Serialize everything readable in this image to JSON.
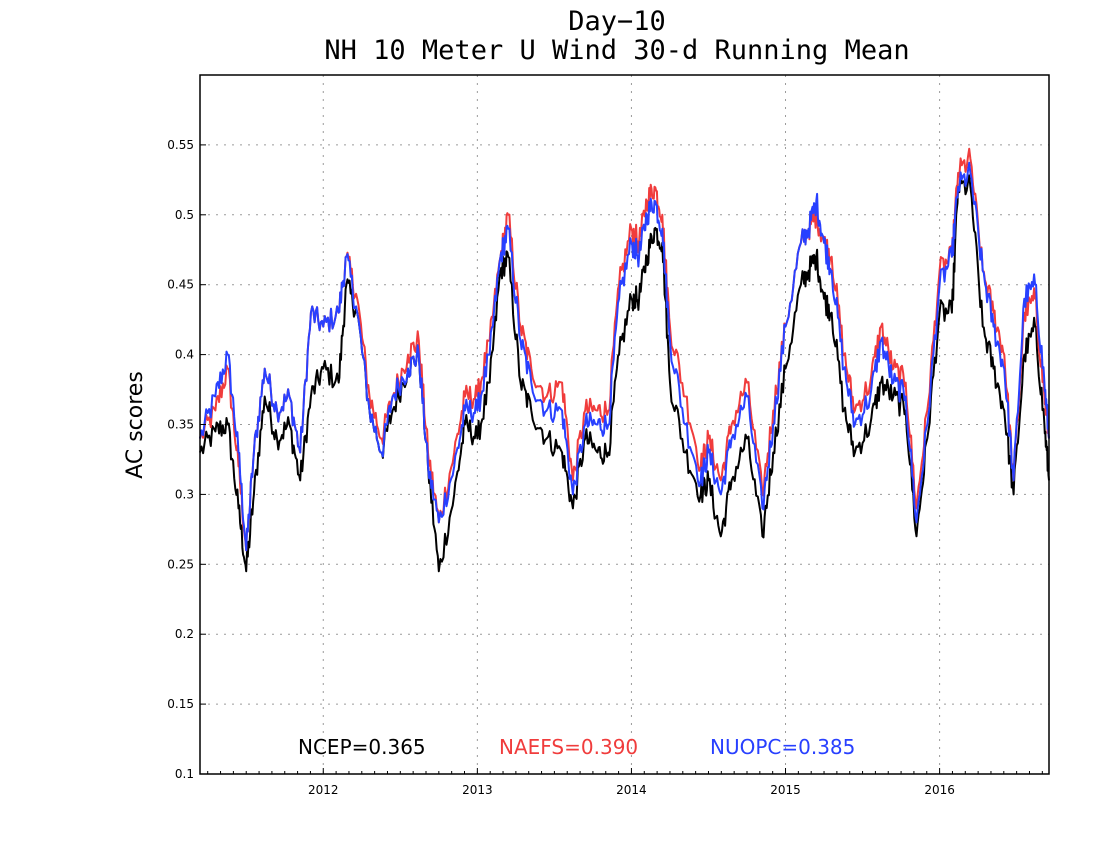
{
  "chart_data": {
    "type": "line",
    "title": "Day−10",
    "subtitle": "NH 10 Meter U Wind 30-d Running Mean",
    "xlabel": "",
    "ylabel": "AC scores",
    "xlim": [
      2011.2,
      2016.71
    ],
    "ylim": [
      0.1,
      0.6
    ],
    "x_ticks": [
      "2012",
      "2013",
      "2014",
      "2015",
      "2016"
    ],
    "y_ticks": [
      "0.1",
      "0.15",
      "0.2",
      "0.25",
      "0.3",
      "0.35",
      "0.4",
      "0.45",
      "0.5",
      "0.55"
    ],
    "grid": true,
    "legend": "bottom",
    "colors": {
      "NCEP": "#000000",
      "NAEFS": "#f03c3c",
      "NUOPC": "#2840ff"
    },
    "annotations": [
      {
        "text": "NCEP=0.365",
        "color": "#000000"
      },
      {
        "text": "NAEFS=0.390",
        "color": "#f03c3c"
      },
      {
        "text": "NUOPC=0.385",
        "color": "#2840ff"
      }
    ],
    "series": [
      {
        "name": "NCEP",
        "color": "#000000",
        "x": [
          2011.2,
          2011.3,
          2011.38,
          2011.45,
          2011.5,
          2011.55,
          2011.62,
          2011.7,
          2011.78,
          2011.85,
          2011.92,
          2012.0,
          2012.1,
          2012.15,
          2012.22,
          2012.3,
          2012.38,
          2012.45,
          2012.55,
          2012.62,
          2012.68,
          2012.75,
          2012.85,
          2012.92,
          2013.0,
          2013.08,
          2013.15,
          2013.2,
          2013.28,
          2013.35,
          2013.45,
          2013.55,
          2013.62,
          2013.7,
          2013.78,
          2013.85,
          2013.92,
          2014.0,
          2014.05,
          2014.1,
          2014.15,
          2014.2,
          2014.25,
          2014.35,
          2014.45,
          2014.5,
          2014.58,
          2014.65,
          2014.75,
          2014.85,
          2014.92,
          2015.0,
          2015.1,
          2015.15,
          2015.2,
          2015.25,
          2015.3,
          2015.38,
          2015.45,
          2015.55,
          2015.62,
          2015.7,
          2015.78,
          2015.85,
          2015.92,
          2016.0,
          2016.08,
          2016.12,
          2016.2,
          2016.28,
          2016.35,
          2016.42,
          2016.48,
          2016.55,
          2016.62,
          2016.68,
          2016.71
        ],
        "y": [
          0.33,
          0.345,
          0.35,
          0.29,
          0.245,
          0.3,
          0.37,
          0.34,
          0.35,
          0.31,
          0.37,
          0.39,
          0.38,
          0.45,
          0.43,
          0.36,
          0.33,
          0.36,
          0.39,
          0.4,
          0.32,
          0.245,
          0.3,
          0.35,
          0.34,
          0.38,
          0.46,
          0.47,
          0.38,
          0.36,
          0.34,
          0.33,
          0.29,
          0.34,
          0.33,
          0.33,
          0.4,
          0.44,
          0.44,
          0.47,
          0.49,
          0.48,
          0.38,
          0.33,
          0.3,
          0.31,
          0.27,
          0.31,
          0.34,
          0.27,
          0.33,
          0.39,
          0.45,
          0.46,
          0.47,
          0.44,
          0.43,
          0.36,
          0.33,
          0.35,
          0.38,
          0.37,
          0.36,
          0.27,
          0.34,
          0.43,
          0.43,
          0.52,
          0.52,
          0.42,
          0.39,
          0.36,
          0.3,
          0.4,
          0.42,
          0.35,
          0.31
        ]
      },
      {
        "name": "NAEFS",
        "color": "#f03c3c",
        "x": [
          2011.2,
          2011.3,
          2011.38,
          2011.45,
          2011.5,
          2011.55,
          2011.62,
          2011.7,
          2011.78,
          2011.85,
          2011.92,
          2012.0,
          2012.1,
          2012.15,
          2012.22,
          2012.3,
          2012.38,
          2012.45,
          2012.55,
          2012.62,
          2012.68,
          2012.75,
          2012.85,
          2012.92,
          2013.0,
          2013.08,
          2013.15,
          2013.2,
          2013.28,
          2013.35,
          2013.45,
          2013.55,
          2013.62,
          2013.7,
          2013.78,
          2013.85,
          2013.92,
          2014.0,
          2014.05,
          2014.1,
          2014.15,
          2014.2,
          2014.25,
          2014.35,
          2014.45,
          2014.5,
          2014.58,
          2014.65,
          2014.75,
          2014.85,
          2014.92,
          2015.0,
          2015.1,
          2015.15,
          2015.2,
          2015.25,
          2015.3,
          2015.38,
          2015.45,
          2015.55,
          2015.62,
          2015.7,
          2015.78,
          2015.85,
          2015.92,
          2016.0,
          2016.08,
          2016.12,
          2016.2,
          2016.28,
          2016.35,
          2016.42,
          2016.48,
          2016.55,
          2016.62,
          2016.68,
          2016.71
        ],
        "y": [
          0.34,
          0.36,
          0.39,
          0.32,
          0.26,
          0.33,
          0.39,
          0.36,
          0.37,
          0.33,
          0.43,
          0.42,
          0.43,
          0.47,
          0.44,
          0.37,
          0.34,
          0.37,
          0.4,
          0.41,
          0.33,
          0.28,
          0.33,
          0.37,
          0.37,
          0.41,
          0.47,
          0.5,
          0.42,
          0.39,
          0.37,
          0.38,
          0.31,
          0.36,
          0.36,
          0.36,
          0.45,
          0.49,
          0.48,
          0.51,
          0.52,
          0.5,
          0.42,
          0.37,
          0.32,
          0.34,
          0.31,
          0.35,
          0.38,
          0.3,
          0.36,
          0.42,
          0.48,
          0.49,
          0.5,
          0.48,
          0.47,
          0.4,
          0.36,
          0.38,
          0.42,
          0.39,
          0.38,
          0.29,
          0.36,
          0.46,
          0.47,
          0.53,
          0.54,
          0.46,
          0.43,
          0.4,
          0.31,
          0.43,
          0.44,
          0.37,
          0.34
        ]
      },
      {
        "name": "NUOPC",
        "color": "#2840ff",
        "x": [
          2011.2,
          2011.3,
          2011.38,
          2011.45,
          2011.5,
          2011.55,
          2011.62,
          2011.7,
          2011.78,
          2011.85,
          2011.92,
          2012.0,
          2012.1,
          2012.15,
          2012.22,
          2012.3,
          2012.38,
          2012.45,
          2012.55,
          2012.62,
          2012.68,
          2012.75,
          2012.85,
          2012.92,
          2013.0,
          2013.08,
          2013.15,
          2013.2,
          2013.28,
          2013.35,
          2013.45,
          2013.55,
          2013.62,
          2013.7,
          2013.78,
          2013.85,
          2013.92,
          2014.0,
          2014.05,
          2014.1,
          2014.15,
          2014.2,
          2014.25,
          2014.35,
          2014.45,
          2014.5,
          2014.58,
          2014.65,
          2014.75,
          2014.85,
          2014.92,
          2015.0,
          2015.1,
          2015.15,
          2015.2,
          2015.25,
          2015.3,
          2015.38,
          2015.45,
          2015.55,
          2015.62,
          2015.7,
          2015.78,
          2015.85,
          2015.92,
          2016.0,
          2016.08,
          2016.12,
          2016.2,
          2016.28,
          2016.35,
          2016.42,
          2016.48,
          2016.55,
          2016.62,
          2016.68,
          2016.71
        ],
        "y": [
          0.34,
          0.37,
          0.4,
          0.33,
          0.26,
          0.33,
          0.39,
          0.36,
          0.37,
          0.33,
          0.43,
          0.42,
          0.43,
          0.47,
          0.43,
          0.36,
          0.33,
          0.37,
          0.39,
          0.4,
          0.32,
          0.28,
          0.32,
          0.36,
          0.36,
          0.4,
          0.47,
          0.49,
          0.41,
          0.38,
          0.36,
          0.36,
          0.3,
          0.35,
          0.35,
          0.35,
          0.44,
          0.48,
          0.47,
          0.5,
          0.51,
          0.49,
          0.41,
          0.35,
          0.31,
          0.33,
          0.3,
          0.34,
          0.37,
          0.29,
          0.35,
          0.42,
          0.48,
          0.49,
          0.51,
          0.48,
          0.46,
          0.39,
          0.35,
          0.37,
          0.41,
          0.38,
          0.37,
          0.28,
          0.35,
          0.45,
          0.47,
          0.52,
          0.53,
          0.46,
          0.42,
          0.39,
          0.31,
          0.44,
          0.45,
          0.38,
          0.34
        ]
      }
    ]
  }
}
